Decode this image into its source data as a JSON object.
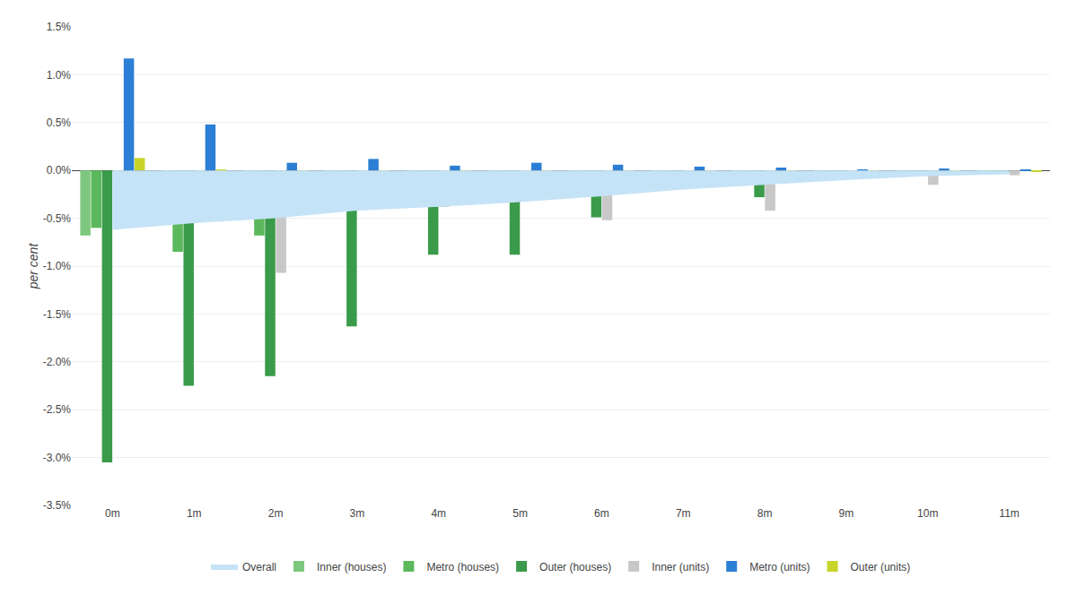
{
  "chart_data": {
    "type": "bar",
    "categories": [
      "0m",
      "1m",
      "2m",
      "3m",
      "4m",
      "5m",
      "6m",
      "7m",
      "8m",
      "9m",
      "10m",
      "11m"
    ],
    "ylabel": "per cent",
    "ylim": [
      -3.5,
      1.5
    ],
    "yticks": [
      {
        "value": -3.5,
        "label": "-3.5%"
      },
      {
        "value": -3.0,
        "label": "-3.0%"
      },
      {
        "value": -2.5,
        "label": "-2.5%"
      },
      {
        "value": -2.0,
        "label": "-2.0%"
      },
      {
        "value": -1.5,
        "label": "-1.5%"
      },
      {
        "value": -1.0,
        "label": "-1.0%"
      },
      {
        "value": -0.5,
        "label": "-0.5%"
      },
      {
        "value": 0.0,
        "label": "0.0%"
      },
      {
        "value": 0.5,
        "label": "0.5%"
      },
      {
        "value": 1.0,
        "label": "1.0%"
      },
      {
        "value": 1.5,
        "label": "1.5%"
      }
    ],
    "grid": true,
    "legend": "bottom",
    "series": [
      {
        "name": "Overall",
        "type": "area",
        "color": "#C5E3F7",
        "values": [
          -0.62,
          -0.55,
          -0.5,
          -0.42,
          -0.38,
          -0.33,
          -0.27,
          -0.2,
          -0.15,
          -0.1,
          -0.06,
          -0.04
        ],
        "top": [
          0.0,
          0.0,
          0.0,
          0.0,
          0.0,
          0.0,
          0.0,
          0.0,
          0.0,
          0.0,
          0.0,
          0.0
        ]
      },
      {
        "name": "Inner (houses)",
        "type": "bar",
        "color": "#7DC87E",
        "values": [
          -0.68,
          -0.4,
          -0.38,
          -0.2,
          -0.18,
          -0.12,
          -0.08,
          -0.06,
          -0.07,
          -0.03,
          -0.02,
          -0.01
        ]
      },
      {
        "name": "Metro (houses)",
        "type": "bar",
        "color": "#5CB85C",
        "values": [
          -0.6,
          -0.85,
          -0.68,
          -0.25,
          -0.33,
          -0.15,
          -0.1,
          -0.08,
          -0.1,
          -0.04,
          -0.02,
          -0.02
        ]
      },
      {
        "name": "Outer (houses)",
        "type": "bar",
        "color": "#3A9B4A",
        "values": [
          -3.05,
          -2.25,
          -2.15,
          -1.63,
          -0.88,
          -0.88,
          -0.49,
          -0.17,
          -0.28,
          -0.08,
          -0.04,
          -0.03
        ]
      },
      {
        "name": "Inner (units)",
        "type": "bar",
        "color": "#C8C8C8",
        "values": [
          -0.1,
          -0.2,
          -1.07,
          -0.35,
          -0.38,
          -0.28,
          -0.52,
          -0.12,
          -0.42,
          -0.05,
          -0.15,
          -0.05
        ]
      },
      {
        "name": "Metro (units)",
        "type": "bar",
        "color": "#2B7FD4",
        "values": [
          1.17,
          0.48,
          0.08,
          0.12,
          0.05,
          0.08,
          0.06,
          0.04,
          0.03,
          0.01,
          0.02,
          0.01
        ]
      },
      {
        "name": "Outer (units)",
        "type": "bar",
        "color": "#C8D42A",
        "values": [
          0.13,
          0.01,
          -0.02,
          -0.05,
          -0.02,
          -0.07,
          -0.06,
          -0.07,
          -0.05,
          -0.07,
          -0.01,
          -0.01
        ]
      }
    ]
  }
}
